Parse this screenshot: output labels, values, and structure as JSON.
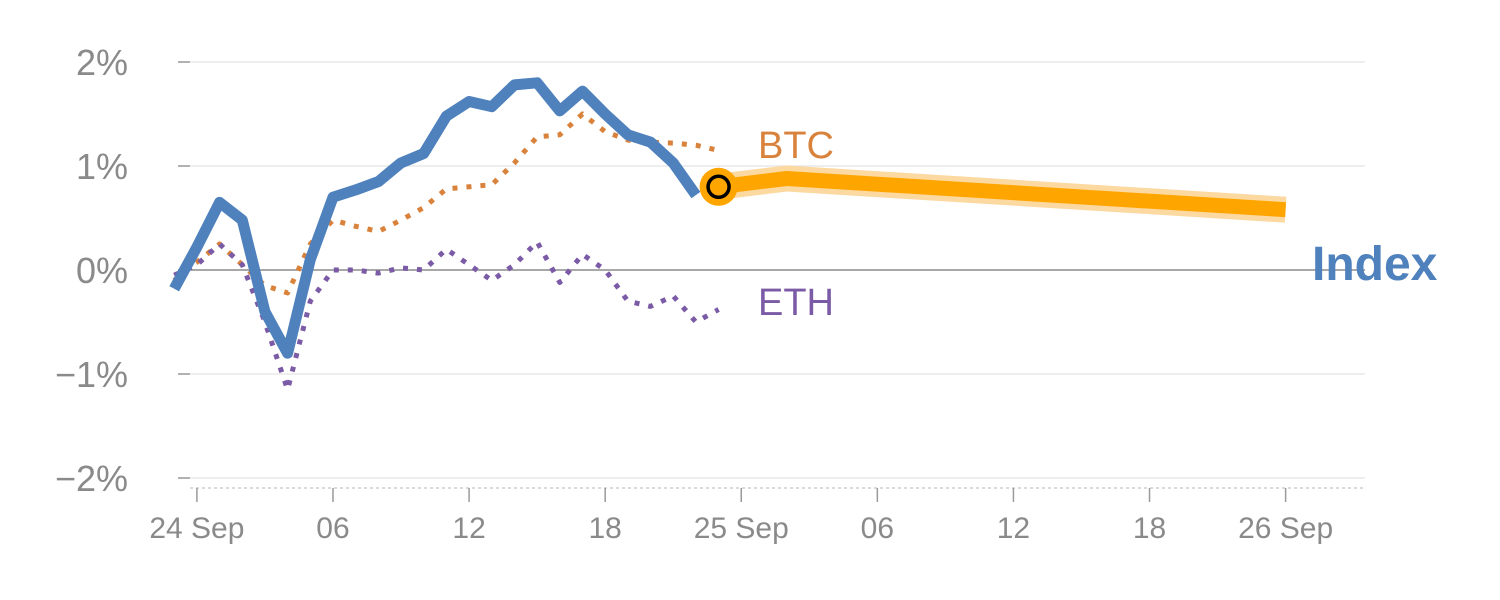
{
  "chart_data": {
    "type": "line",
    "title": "",
    "xlabel": "",
    "ylabel": "",
    "ylim": [
      -2,
      2
    ],
    "xlim": [
      "2024-09-23T23:10",
      "2024-09-26T03:30"
    ],
    "y_tick_values": [
      2,
      1,
      0,
      -1,
      -2
    ],
    "y_tick_labels": [
      "2%",
      "1%",
      "0%",
      "−1%",
      "−2%"
    ],
    "x_ticks": [
      {
        "t": "2024-09-24T00:00",
        "label": "24 Sep"
      },
      {
        "t": "2024-09-24T06:00",
        "label": "06"
      },
      {
        "t": "2024-09-24T12:00",
        "label": "12"
      },
      {
        "t": "2024-09-24T18:00",
        "label": "18"
      },
      {
        "t": "2024-09-25T00:00",
        "label": "25 Sep"
      },
      {
        "t": "2024-09-25T06:00",
        "label": "06"
      },
      {
        "t": "2024-09-25T12:00",
        "label": "12"
      },
      {
        "t": "2024-09-25T18:00",
        "label": "18"
      },
      {
        "t": "2024-09-26T00:00",
        "label": "26 Sep"
      }
    ],
    "grid": true,
    "series": [
      {
        "name": "BTC",
        "color": "#d9823b",
        "style": "dotted",
        "x": [
          "2024-09-23T23:00",
          "2024-09-24T01:00",
          "2024-09-24T02:00",
          "2024-09-24T03:00",
          "2024-09-24T04:00",
          "2024-09-24T05:00",
          "2024-09-24T06:00",
          "2024-09-24T07:00",
          "2024-09-24T08:00",
          "2024-09-24T09:00",
          "2024-09-24T10:00",
          "2024-09-24T11:00",
          "2024-09-24T12:00",
          "2024-09-24T13:00",
          "2024-09-24T14:00",
          "2024-09-24T15:00",
          "2024-09-24T16:00",
          "2024-09-24T17:00",
          "2024-09-24T18:00",
          "2024-09-24T19:00",
          "2024-09-24T20:00",
          "2024-09-24T21:00",
          "2024-09-24T22:00",
          "2024-09-24T23:00"
        ],
        "values": [
          -0.1,
          0.25,
          0.05,
          -0.15,
          -0.22,
          0.25,
          0.48,
          0.42,
          0.37,
          0.48,
          0.6,
          0.78,
          0.8,
          0.82,
          1.03,
          1.28,
          1.3,
          1.5,
          1.33,
          1.25,
          1.23,
          1.22,
          1.2,
          1.15
        ]
      },
      {
        "name": "ETH",
        "color": "#7b5ba6",
        "style": "dotted",
        "x": [
          "2024-09-23T23:00",
          "2024-09-24T00:00",
          "2024-09-24T01:00",
          "2024-09-24T02:00",
          "2024-09-24T03:00",
          "2024-09-24T04:00",
          "2024-09-24T05:00",
          "2024-09-24T06:00",
          "2024-09-24T07:00",
          "2024-09-24T08:00",
          "2024-09-24T09:00",
          "2024-09-24T10:00",
          "2024-09-24T11:00",
          "2024-09-24T12:00",
          "2024-09-24T13:00",
          "2024-09-24T14:00",
          "2024-09-24T15:00",
          "2024-09-24T16:00",
          "2024-09-24T17:00",
          "2024-09-24T18:00",
          "2024-09-24T19:00",
          "2024-09-24T20:00",
          "2024-09-24T21:00",
          "2024-09-24T22:00",
          "2024-09-24T23:00"
        ],
        "values": [
          -0.05,
          0.05,
          0.25,
          0.05,
          -0.5,
          -1.15,
          -0.3,
          0.0,
          0.0,
          -0.03,
          0.02,
          0.0,
          0.2,
          0.05,
          -0.1,
          0.05,
          0.27,
          -0.12,
          0.15,
          0.0,
          -0.3,
          -0.35,
          -0.25,
          -0.5,
          -0.38
        ]
      },
      {
        "name": "Index",
        "color": "#4f81bd",
        "style": "solid",
        "x": [
          "2024-09-23T23:00",
          "2024-09-24T00:00",
          "2024-09-24T01:00",
          "2024-09-24T02:00",
          "2024-09-24T03:00",
          "2024-09-24T04:00",
          "2024-09-24T05:00",
          "2024-09-24T06:00",
          "2024-09-24T07:00",
          "2024-09-24T08:00",
          "2024-09-24T09:00",
          "2024-09-24T10:00",
          "2024-09-24T11:00",
          "2024-09-24T12:00",
          "2024-09-24T13:00",
          "2024-09-24T14:00",
          "2024-09-24T15:00",
          "2024-09-24T16:00",
          "2024-09-24T17:00",
          "2024-09-24T18:00",
          "2024-09-24T19:00",
          "2024-09-24T20:00",
          "2024-09-24T21:00",
          "2024-09-24T22:00"
        ],
        "values": [
          -0.18,
          0.22,
          0.65,
          0.48,
          -0.4,
          -0.8,
          0.1,
          0.7,
          0.77,
          0.85,
          1.03,
          1.12,
          1.48,
          1.62,
          1.57,
          1.78,
          1.8,
          1.53,
          1.72,
          1.5,
          1.3,
          1.23,
          1.03,
          0.72
        ]
      },
      {
        "name": "Index",
        "color": "#ffa500",
        "style": "thick",
        "x": [
          "2024-09-24T23:00",
          "2024-09-25T02:00",
          "2024-09-26T00:00"
        ],
        "values": [
          0.8,
          0.88,
          0.58
        ]
      }
    ],
    "marker": {
      "t": "2024-09-24T23:00",
      "value": 0.8
    },
    "labels": [
      {
        "text": "BTC",
        "color": "#d9823b"
      },
      {
        "text": "ETH",
        "color": "#7b5ba6"
      },
      {
        "text": "Index",
        "color": "#4f81bd"
      }
    ]
  }
}
